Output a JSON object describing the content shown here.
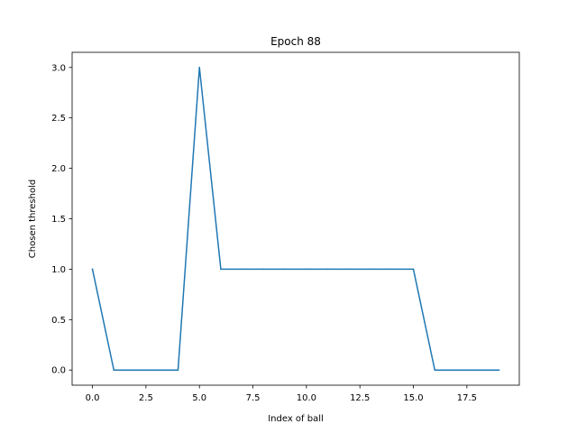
{
  "chart_data": {
    "type": "line",
    "title": "Epoch 88",
    "xlabel": "Index of ball",
    "ylabel": "Chosen threshold",
    "x": [
      0,
      1,
      2,
      3,
      4,
      5,
      6,
      7,
      8,
      9,
      10,
      11,
      12,
      13,
      14,
      15,
      16,
      17,
      18,
      19
    ],
    "series": [
      {
        "values": [
          1,
          0,
          0,
          0,
          0,
          3,
          1,
          1,
          1,
          1,
          1,
          1,
          1,
          1,
          1,
          1,
          0,
          0,
          0,
          0
        ]
      }
    ],
    "xlim": [
      -0.95,
      19.95
    ],
    "ylim": [
      -0.15,
      3.15
    ],
    "xticks": [
      "0.0",
      "2.5",
      "5.0",
      "7.5",
      "10.0",
      "12.5",
      "15.0",
      "17.5"
    ],
    "yticks": [
      "0.0",
      "0.5",
      "1.0",
      "1.5",
      "2.0",
      "2.5",
      "3.0"
    ],
    "grid": false,
    "colors": {
      "line": "#1f77b4",
      "axes": "#000000"
    }
  }
}
